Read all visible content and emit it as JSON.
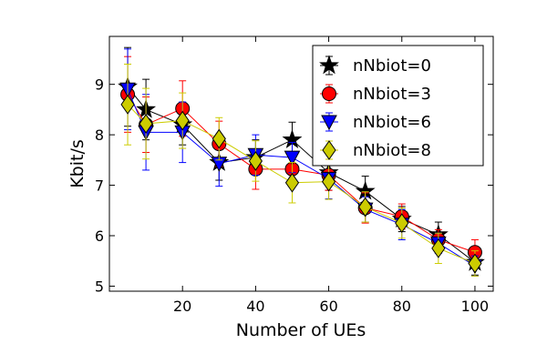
{
  "chart_data": {
    "type": "line",
    "xlabel": "Number of UEs",
    "ylabel": "Kbit/s",
    "xlim": [
      0,
      105
    ],
    "ylim": [
      4.9,
      9.95
    ],
    "xticks": [
      20,
      40,
      60,
      80,
      100
    ],
    "yticks": [
      5,
      6,
      7,
      8,
      9
    ],
    "grid": false,
    "legend_position": "top-right",
    "x": [
      5,
      10,
      20,
      30,
      40,
      50,
      60,
      70,
      80,
      90,
      100
    ],
    "series": [
      {
        "name": "nNbiot=0",
        "color": "#000000",
        "marker": "star",
        "values": [
          8.95,
          8.5,
          8.2,
          7.45,
          7.55,
          7.9,
          7.25,
          6.88,
          6.33,
          6.02,
          5.47
        ],
        "errors": [
          0.78,
          0.6,
          0.4,
          0.35,
          0.35,
          0.35,
          0.35,
          0.3,
          0.25,
          0.25,
          0.25
        ]
      },
      {
        "name": "nNbiot=3",
        "color": "#ff0000",
        "marker": "circle",
        "values": [
          8.8,
          8.2,
          8.52,
          7.82,
          7.32,
          7.32,
          7.2,
          6.55,
          6.38,
          5.92,
          5.67
        ],
        "errors": [
          0.75,
          0.55,
          0.55,
          0.45,
          0.4,
          0.3,
          0.3,
          0.3,
          0.25,
          0.2,
          0.25
        ]
      },
      {
        "name": "nNbiot=6",
        "color": "#0000ff",
        "marker": "triangle-down",
        "values": [
          8.9,
          8.05,
          8.05,
          7.43,
          7.6,
          7.55,
          7.13,
          6.52,
          6.22,
          5.85,
          5.4
        ],
        "errors": [
          0.8,
          0.75,
          0.6,
          0.45,
          0.4,
          0.3,
          0.4,
          0.25,
          0.3,
          0.2,
          0.2
        ]
      },
      {
        "name": "nNbiot=8",
        "color": "#cccc00",
        "marker": "diamond",
        "values": [
          8.6,
          8.22,
          8.28,
          7.92,
          7.48,
          7.05,
          7.07,
          6.57,
          6.25,
          5.75,
          5.45
        ],
        "errors": [
          0.8,
          0.7,
          0.55,
          0.42,
          0.4,
          0.4,
          0.35,
          0.3,
          0.3,
          0.3,
          0.25
        ]
      }
    ]
  }
}
